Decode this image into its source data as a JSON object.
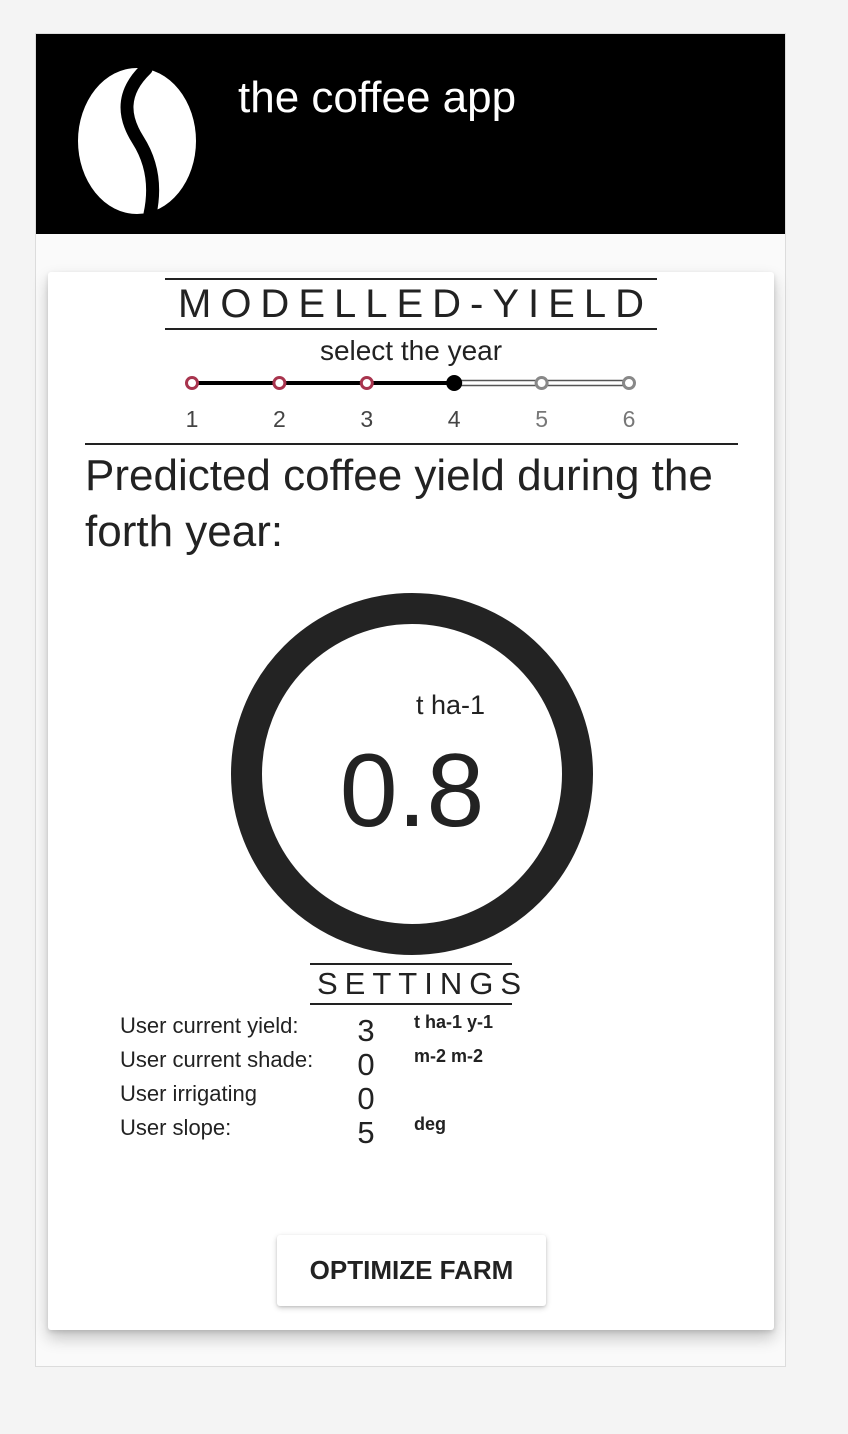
{
  "header": {
    "app_title": "the coffee app",
    "logo_icon": "coffee-bean-icon"
  },
  "modelled_yield": {
    "section_title": "MODELLED-YIELD",
    "year_prompt": "select the year",
    "years": [
      {
        "label": "1",
        "state": "completed"
      },
      {
        "label": "2",
        "state": "completed"
      },
      {
        "label": "3",
        "state": "completed"
      },
      {
        "label": "4",
        "state": "active"
      },
      {
        "label": "5",
        "state": "future"
      },
      {
        "label": "6",
        "state": "future"
      }
    ],
    "selected_year": "4",
    "prediction_heading": "Predicted coffee yield during the forth year:",
    "yield_unit": "t ha-1",
    "yield_value": "0.8"
  },
  "settings": {
    "title": "SETTINGS",
    "rows": [
      {
        "label": "User current yield:",
        "value": "3",
        "unit": "t ha-1 y-1"
      },
      {
        "label": "User current shade:",
        "value": "0",
        "unit": "m-2 m-2"
      },
      {
        "label": "User irrigating",
        "value": "0",
        "unit": ""
      },
      {
        "label": "User slope:",
        "value": "5",
        "unit": "deg"
      }
    ]
  },
  "actions": {
    "optimize_label": "OPTIMIZE FARM"
  },
  "colors": {
    "header_bg": "#000000",
    "completed_step": "#a8344e",
    "active_step": "#000000",
    "future_step": "#888888",
    "gauge_ring": "#232323"
  }
}
